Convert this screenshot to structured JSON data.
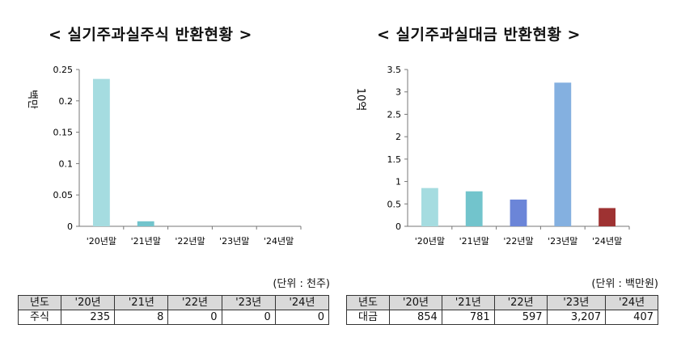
{
  "chart_data": [
    {
      "type": "bar",
      "title": "< 실기주과실주식 반환현황 >",
      "ylabel": "백만",
      "ylim": [
        0,
        0.25
      ],
      "yticks": [
        "0.25",
        "0.2",
        "0.15",
        "0.1",
        "0.05",
        "0"
      ],
      "categories": [
        "'20년말",
        "'21년말",
        "'22년말",
        "'23년말",
        "'24년말"
      ],
      "values": [
        0.235,
        0.008,
        0,
        0,
        0
      ],
      "colors": [
        "#a5dce0",
        "#72c4cc",
        "#6b85d8",
        "#84b0e0",
        "#9e3232"
      ],
      "grid": false,
      "unit_note": "(단위 : 천주)",
      "table": {
        "header": [
          "년도",
          "'20년",
          "'21년",
          "'22년",
          "'23년",
          "'24년"
        ],
        "row": [
          "주식",
          "235",
          "8",
          "0",
          "0",
          "0"
        ]
      }
    },
    {
      "type": "bar",
      "title": "< 실기주과실대금 반환현황 >",
      "ylabel": "10억",
      "ylim": [
        0,
        3.5
      ],
      "yticks": [
        "3.5",
        "3",
        "2.5",
        "2",
        "1.5",
        "1",
        "0.5",
        "0"
      ],
      "categories": [
        "'20년말",
        "'21년말",
        "'22년말",
        "'23년말",
        "'24년말"
      ],
      "values": [
        0.854,
        0.781,
        0.597,
        3.207,
        0.407
      ],
      "colors": [
        "#a5dce0",
        "#72c4cc",
        "#6b85d8",
        "#84b0e0",
        "#9e3232"
      ],
      "grid": false,
      "unit_note": "(단위 : 백만원)",
      "table": {
        "header": [
          "년도",
          "'20년",
          "'21년",
          "'22년",
          "'23년",
          "'24년"
        ],
        "row": [
          "대금",
          "854",
          "781",
          "597",
          "3,207",
          "407"
        ]
      }
    }
  ]
}
